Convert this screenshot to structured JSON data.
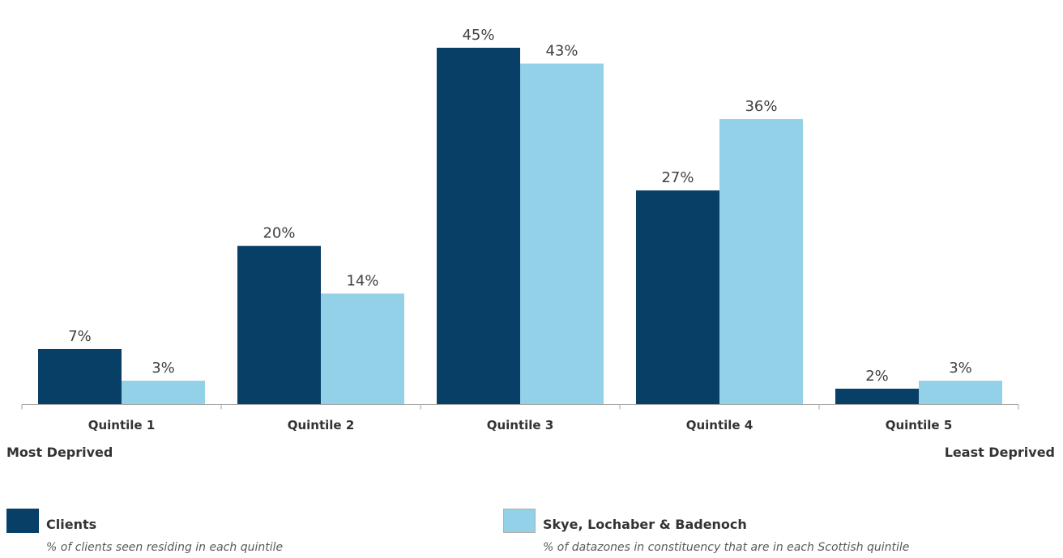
{
  "chart_data": {
    "type": "bar",
    "categories": [
      "Quintile 1",
      "Quintile 2",
      "Quintile 3",
      "Quintile 4",
      "Quintile 5"
    ],
    "series": [
      {
        "name": "Clients",
        "values": [
          7,
          20,
          45,
          27,
          2
        ],
        "labels": [
          "7%",
          "20%",
          "45%",
          "27%",
          "2%"
        ],
        "color": "#083f66"
      },
      {
        "name": "Skye, Lochaber & Badenoch",
        "values": [
          3,
          14,
          43,
          36,
          3
        ],
        "labels": [
          "3%",
          "14%",
          "43%",
          "36%",
          "3%"
        ],
        "color": "#92d1e8"
      }
    ],
    "ylim": [
      0,
      50
    ],
    "grid": false,
    "legend_placement": "bottom",
    "axis_extremes": {
      "left": "Most Deprived",
      "right": "Least Deprived"
    }
  },
  "legend": {
    "clients": {
      "title": "Clients",
      "description": "% of clients seen residing in each quintile",
      "color": "#083f66"
    },
    "area": {
      "title": "Skye, Lochaber & Badenoch",
      "description": "% of datazones in constituency that are in each Scottish quintile",
      "color": "#92d1e8"
    }
  }
}
